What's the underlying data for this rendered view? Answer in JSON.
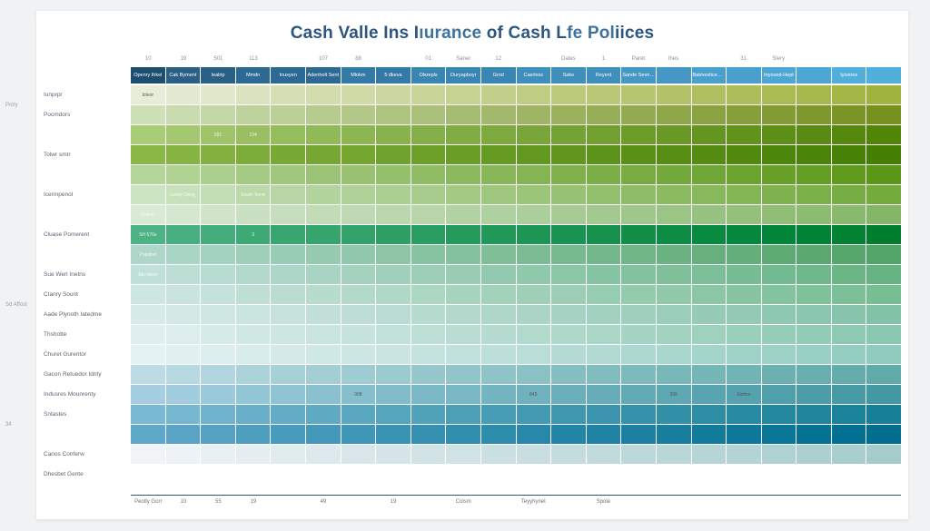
{
  "title_parts": [
    "Cash Val",
    "le Ins I",
    "ıurance ",
    " of Cash L",
    "fe Pol",
    "iices"
  ],
  "title_colors": [
    "#2c5580",
    "#2c5580",
    "#3d729e",
    "#2c5580",
    "#3d729e",
    "#2c5580"
  ],
  "background_color": "#f0f2f4",
  "sheet_color": "#ffffff",
  "axis_color": "#31567b",
  "cols": 22,
  "rows": 20,
  "col_numbers": [
    "10",
    "19",
    "501",
    "113",
    "",
    "107",
    "88",
    "",
    "01",
    "Saner",
    "12",
    "",
    "Dates",
    "1",
    "Paret",
    "Ihes",
    "",
    "31",
    "Slery",
    "",
    "",
    ""
  ],
  "header_labels": [
    "Openry Ihkel",
    "Cak Byment",
    "Iealrip",
    "Mmdn",
    "Inusyen",
    "Adenholt Sent",
    "Mlokm",
    "5 dkeva",
    "Olsrepls",
    "Ouryapboyr",
    "Grod",
    "Casrless",
    "Sake",
    "Reyent",
    "Sande Sevnart",
    "",
    "Batmesticent hen",
    "",
    "Inyoved-Hept",
    "",
    "Iyiveres",
    ""
  ],
  "header_colors": [
    "#1e4e6f",
    "#2a5f86",
    "#2a5f86",
    "#2d6a93",
    "#2d6a93",
    "#2d6a93",
    "#337aa6",
    "#337aa6",
    "#3a86b3",
    "#3a86b3",
    "#3a86b3",
    "#3f8fbd",
    "#3f8fbd",
    "#3f8fbd",
    "#4598c6",
    "#4598c6",
    "#49a0cd",
    "#49a0cd",
    "#4da7d4",
    "#4da7d4",
    "#51afdb",
    "#51afdb"
  ],
  "row_labels": [
    "Iunprpr",
    "Pocmdors",
    "",
    "Tolwr  smtr",
    "",
    "Icermpenol",
    "",
    "Cluase Pomerent",
    "",
    "Sue Werl Inetns",
    "Ctanry Sount",
    "Aade Plynoth Iatedme",
    "Thshotte",
    "Churet Gurentor",
    "Gacon Retuedor Idnty",
    "Indusres Mounrenty",
    "Sntastes",
    "",
    "Canos Conferw",
    "Dhesbet Gente"
  ],
  "side_labels": [
    "Polry",
    "",
    "",
    "",
    "",
    "Sd Affost",
    "",
    "",
    "34",
    "",
    ""
  ],
  "axis_labels": [
    "Peotly Gorr",
    "10",
    "55",
    "19",
    "",
    "49",
    "",
    "19",
    "",
    "Colsm",
    "",
    "Teyyhynet",
    "",
    "Spole",
    "",
    "",
    "",
    "",
    "",
    "",
    "",
    ""
  ],
  "row_colors": [
    [
      "#e7edd8",
      "#e3ead1",
      "#dfe8ca",
      "#d9e3be",
      "#d5dfb4",
      "#d2ddad",
      "#cfdaa6",
      "#cbd79f",
      "#c8d498",
      "#c5d291",
      "#c2cf8a",
      "#bfcd83",
      "#bcca7c",
      "#b9c776",
      "#b6c56f",
      "#b3c268",
      "#b0c061",
      "#adbd5a",
      "#aabb53",
      "#a7b84c",
      "#a4b646",
      "#a1b33f"
    ],
    [
      "#cfe0b8",
      "#cadbb0",
      "#c5d7a7",
      "#bfd29d",
      "#bbcf96",
      "#b7cb8f",
      "#b3c788",
      "#afc381",
      "#abc07a",
      "#a7bc73",
      "#a3b86c",
      "#9fb565",
      "#9bb15e",
      "#97ad57",
      "#93aa50",
      "#8fa649",
      "#8ba242",
      "#879f3b",
      "#839b34",
      "#7f972d",
      "#7b9426",
      "#77901f"
    ],
    [
      "#a9cc76",
      "#a4c870",
      "#9fc46a",
      "#99bf62",
      "#95bc5d",
      "#91b958",
      "#8db653",
      "#89b24e",
      "#85af49",
      "#81ac44",
      "#7da93f",
      "#79a53a",
      "#75a235",
      "#719f30",
      "#6d9c2b",
      "#699826",
      "#659521",
      "#61921c",
      "#5d8f17",
      "#598b12",
      "#55880d",
      "#518508"
    ],
    [
      "#8ab847",
      "#86b443",
      "#82b13f",
      "#7cac39",
      "#79a935",
      "#76a732",
      "#73a52f",
      "#6fa22c",
      "#6ca029",
      "#699d26",
      "#669b23",
      "#639820",
      "#60961d",
      "#5c931a",
      "#599117",
      "#568e14",
      "#538c11",
      "#50890e",
      "#4c870b",
      "#498408",
      "#468205",
      "#437f02"
    ],
    [
      "#b5d59a",
      "#b0d293",
      "#abcf8c",
      "#a4ca83",
      "#a0c77d",
      "#9cc477",
      "#98c271",
      "#94bf6b",
      "#90bc65",
      "#8cb95f",
      "#88b659",
      "#84b453",
      "#80b14d",
      "#7cae47",
      "#78ab41",
      "#74a93b",
      "#70a635",
      "#6ca32f",
      "#68a029",
      "#649e23",
      "#609b1d",
      "#5c9817"
    ],
    [
      "#cce4c1",
      "#c7e1ba",
      "#c2deb3",
      "#bcd9aa",
      "#b7d6a3",
      "#b3d49d",
      "#afd197",
      "#abcf91",
      "#a7cc8b",
      "#a3ca85",
      "#9fc77f",
      "#9bc579",
      "#97c273",
      "#93c06d",
      "#8fbd67",
      "#8bbb61",
      "#87b85b",
      "#83b655",
      "#7fb34f",
      "#7bb149",
      "#77ae43",
      "#73ac3d"
    ],
    [
      "#d8e9d4",
      "#d4e7cf",
      "#d0e4ca",
      "#cae0c2",
      "#c6debd",
      "#c2dcb8",
      "#bed9b3",
      "#bbd7ae",
      "#b7d5a9",
      "#b3d2a4",
      "#afd09f",
      "#abce9a",
      "#a8cb95",
      "#a4c990",
      "#a0c78b",
      "#9cc486",
      "#98c281",
      "#95c07c",
      "#91bd77",
      "#8dbb72",
      "#89b96d",
      "#85b668"
    ],
    [
      "#4db285",
      "#48af80",
      "#44ad7c",
      "#3da975",
      "#39a671",
      "#35a46d",
      "#31a269",
      "#2d9f65",
      "#299d61",
      "#259a5d",
      "#219859",
      "#1d9655",
      "#199351",
      "#15914d",
      "#118f49",
      "#0d8c45",
      "#098a41",
      "#05883d",
      "#018539",
      "#018335",
      "#018131",
      "#017e2d"
    ],
    [
      "#aed7ca",
      "#a9d5c5",
      "#a4d2c0",
      "#9ecfb9",
      "#99ccb4",
      "#95caaf",
      "#91c8ab",
      "#8dc5a6",
      "#88c3a1",
      "#84c19d",
      "#80be98",
      "#7cbc94",
      "#78ba8f",
      "#73b78b",
      "#6fb586",
      "#6bb382",
      "#67b07d",
      "#63ae79",
      "#5eac74",
      "#5aa970",
      "#56a76b",
      "#52a567"
    ],
    [
      "#c1e0d9",
      "#bcded5",
      "#b7dcd1",
      "#b1d8cb",
      "#acd6c7",
      "#a8d4c3",
      "#a4d2bf",
      "#a0d0bb",
      "#9cceb7",
      "#98ccb3",
      "#93caaf",
      "#8fc8ab",
      "#8bc6a7",
      "#87c4a3",
      "#83c29f",
      "#7fc09b",
      "#7bbe97",
      "#77bc93",
      "#72ba8f",
      "#6eb88b",
      "#6ab687",
      "#66b483"
    ],
    [
      "#cde6e2",
      "#c9e4de",
      "#c5e2da",
      "#bfdfd5",
      "#bbddd1",
      "#b7dbcd",
      "#b3d9ca",
      "#afd8c6",
      "#abd6c2",
      "#a7d4bf",
      "#a3d2bb",
      "#9fd0b7",
      "#9bceb4",
      "#97cdb0",
      "#93cbac",
      "#8fc9a9",
      "#8bc7a5",
      "#87c5a1",
      "#83c49e",
      "#7fc29a",
      "#7bc096",
      "#77be93"
    ],
    [
      "#d7ebe9",
      "#d3e9e6",
      "#cfe7e3",
      "#cae4de",
      "#c6e2db",
      "#c2e0d8",
      "#beded5",
      "#badcd2",
      "#b6dbcf",
      "#b2d9cc",
      "#aed7c9",
      "#aad5c6",
      "#a6d3c3",
      "#a2d1c0",
      "#9ed0bd",
      "#9aceba",
      "#96ccb7",
      "#92cab4",
      "#8ec8b1",
      "#8ac7ae",
      "#86c5ab",
      "#82c3a8"
    ],
    [
      "#dfefef",
      "#dbedec",
      "#d7ebe9",
      "#d2e8e5",
      "#cee6e2",
      "#cae4df",
      "#c6e3dc",
      "#c2e1d9",
      "#bedfd6",
      "#baddd3",
      "#b6dbd0",
      "#b2dacd",
      "#aed8ca",
      "#aad6c7",
      "#a6d4c4",
      "#a2d3c1",
      "#9ed1be",
      "#9acfbb",
      "#96cdb8",
      "#92ccb5",
      "#8ecab2",
      "#8ac8af"
    ],
    [
      "#e5f2f3",
      "#e1f0f1",
      "#ddeeef",
      "#d8eceb",
      "#d4eae9",
      "#d0e8e6",
      "#cce6e4",
      "#c8e5e1",
      "#c4e3df",
      "#c0e1dc",
      "#bcdfda",
      "#b8ded7",
      "#b4dcd5",
      "#b0dad2",
      "#acd8d0",
      "#a8d7cd",
      "#a4d5cb",
      "#a0d3c8",
      "#9cd1c6",
      "#98d0c3",
      "#94cec1",
      "#90ccbe"
    ],
    [
      "#bcdbe5",
      "#b7d9e2",
      "#b2d6df",
      "#acd2da",
      "#a7d0d7",
      "#a3ced4",
      "#9fccd2",
      "#9bcacf",
      "#96c7cc",
      "#92c5c9",
      "#8ec3c7",
      "#8ac1c4",
      "#86bfc1",
      "#81bcbf",
      "#7dbabc",
      "#79b8b9",
      "#75b6b7",
      "#71b4b4",
      "#6cb1b1",
      "#68afaf",
      "#64adac",
      "#60aba9"
    ],
    [
      "#a5cfe0",
      "#a0ccdd",
      "#9acada",
      "#93c6d5",
      "#8ec3d2",
      "#8ac1cf",
      "#85becc",
      "#81bcca",
      "#7cb9c7",
      "#78b7c4",
      "#73b4c1",
      "#6fb2be",
      "#6aafbc",
      "#66adb9",
      "#61aab6",
      "#5da8b3",
      "#58a5b1",
      "#54a3ae",
      "#4fa0ab",
      "#4b9ea8",
      "#469ba6",
      "#4299a3"
    ],
    [
      "#7ab9d4",
      "#75b6d1",
      "#70b3ce",
      "#68afc9",
      "#63acc6",
      "#5faac3",
      "#5aa7c1",
      "#56a5be",
      "#51a2bb",
      "#4d9fb8",
      "#489db6",
      "#449ab3",
      "#3f97b0",
      "#3b95ae",
      "#3692ab",
      "#3290a8",
      "#2d8da5",
      "#298aa3",
      "#2488a0",
      "#20859d",
      "#1b839b",
      "#178098"
    ],
    [
      "#5fa8ca",
      "#5aa5c7",
      "#55a2c4",
      "#4d9ebf",
      "#489bbc",
      "#4498ba",
      "#3f96b7",
      "#3b93b4",
      "#3690b2",
      "#328eaf",
      "#2d8bac",
      "#2988aa",
      "#2486a7",
      "#2083a4",
      "#1b80a2",
      "#177e9f",
      "#127b9c",
      "#0e789a",
      "#097697",
      "#057394",
      "#017092",
      "#016e8f"
    ],
    [
      "#f0f4f7",
      "#ecf2f5",
      "#e9f0f3",
      "#e4edf0",
      "#e0ebee",
      "#dde9ec",
      "#d9e7ea",
      "#d6e5e8",
      "#d2e3e6",
      "#cfe2e4",
      "#cbe0e2",
      "#c8dee0",
      "#c4dcde",
      "#c1dadc",
      "#bdd8da",
      "#bad7d8",
      "#b6d5d6",
      "#b3d3d4",
      "#afd1d2",
      "#acd0d0",
      "#a8cece",
      "#a5cccc"
    ],
    [
      "#ffffff",
      "#ffffff",
      "#ffffff",
      "#ffffff",
      "#ffffff",
      "#ffffff",
      "#ffffff",
      "#ffffff",
      "#ffffff",
      "#ffffff",
      "#ffffff",
      "#ffffff",
      "#ffffff",
      "#ffffff",
      "#ffffff",
      "#ffffff",
      "#ffffff",
      "#ffffff",
      "#ffffff",
      "#ffffff",
      "#ffffff",
      "#ffffff"
    ]
  ],
  "cell_text": {
    "0": [
      "Icteor",
      "",
      "",
      "",
      "",
      "",
      "",
      "",
      "",
      "",
      "",
      "",
      "",
      "",
      "",
      "",
      "",
      "",
      "",
      "",
      "",
      ""
    ],
    "2": [
      "",
      "",
      "591",
      "134",
      "",
      "",
      "",
      "",
      "",
      "",
      "",
      "",
      "",
      "",
      "",
      "",
      "",
      "",
      "",
      "",
      "",
      ""
    ],
    "5": [
      "",
      "Linoty Dtesg",
      "",
      "Snoth Teent",
      "",
      "",
      "",
      "",
      "",
      "",
      "",
      "",
      "",
      "",
      "",
      "",
      "",
      "",
      "",
      "",
      "",
      ""
    ],
    "6": [
      "S8Anio",
      "",
      "",
      "",
      "",
      "",
      "",
      "",
      "",
      "",
      "",
      "",
      "",
      "",
      "",
      "",
      "",
      "",
      "",
      "",
      "",
      ""
    ],
    "7": [
      "SH 576s",
      "",
      "",
      "3",
      "",
      "",
      "",
      "",
      "",
      "",
      "",
      "",
      "",
      "",
      "",
      "",
      "",
      "",
      "",
      "",
      "",
      ""
    ],
    "8": [
      "Popldret",
      "",
      "",
      "",
      "",
      "",
      "",
      "",
      "",
      "",
      "",
      "",
      "",
      "",
      "",
      "",
      "",
      "",
      "",
      "",
      "",
      ""
    ],
    "9": [
      "Bin Iorerr",
      "",
      "",
      "",
      "",
      "",
      "",
      "",
      "",
      "",
      "",
      "",
      "",
      "",
      "",
      "",
      "",
      "",
      "",
      "",
      "",
      ""
    ],
    "14": [
      "",
      "",
      "",
      "",
      "",
      "",
      "",
      "",
      "",
      "",
      "",
      "",
      "",
      "",
      "",
      "",
      "",
      "",
      "",
      "",
      "",
      ""
    ],
    "15": [
      "",
      "",
      "",
      "",
      "",
      "",
      "008",
      "",
      "",
      "",
      "",
      "845",
      "",
      "",
      "",
      "395",
      "",
      "Siolmn",
      "",
      "",
      "",
      ""
    ],
    "16": [
      "",
      "",
      "",
      "",
      "",
      "",
      "",
      "",
      "",
      "",
      "",
      "",
      "",
      "",
      "",
      "",
      "",
      "",
      "",
      "",
      "",
      ""
    ]
  },
  "light_row_threshold": 13
}
